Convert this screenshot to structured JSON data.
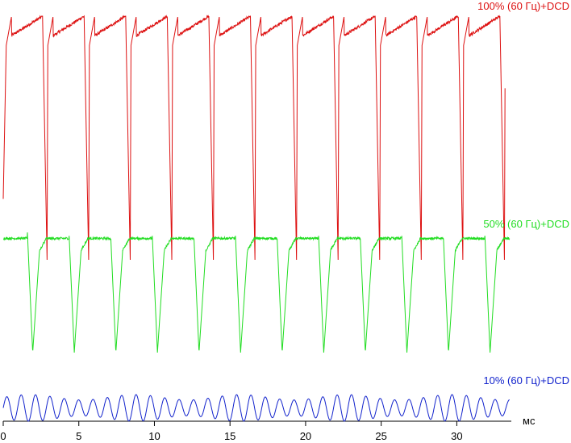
{
  "chart_data": {
    "type": "line",
    "xlabel": "мс",
    "xlim": [
      0,
      33.5
    ],
    "xticks": [
      0,
      5,
      10,
      15,
      20,
      25,
      30
    ],
    "grid": false,
    "legend": "inline-right",
    "series": [
      {
        "name": "100% (60 Гц)+DCD",
        "color": "#dd1111",
        "waveform": "sawtooth-with-sharp-drop",
        "period_ms": 2.75,
        "first_cycle_start_ms": 0.2,
        "cycles": 12,
        "level_high": 1.0,
        "level_low": 0.0,
        "start_level": 0.25,
        "ylim": [
          0,
          1
        ]
      },
      {
        "name": "50% (60 Гц)+DCD",
        "color": "#22dd22",
        "waveform": "plateau-with-spikes-down",
        "period_ms": 2.75,
        "first_spike_ms": 1.95,
        "cycles": 12,
        "level_high": 1.0,
        "level_low": 0.0,
        "ylim": [
          0,
          1
        ]
      },
      {
        "name": "10% (60 Гц)+DCD",
        "color": "#1122cc",
        "waveform": "sine",
        "period_ms": 0.95,
        "amplitude": 1.0,
        "ylim": [
          -1,
          1
        ]
      }
    ]
  }
}
